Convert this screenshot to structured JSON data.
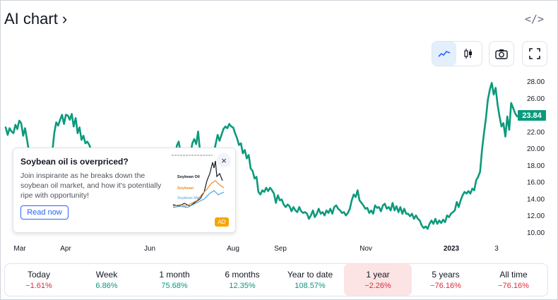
{
  "header": {
    "title": "AI chart ›",
    "embed_icon": "</>"
  },
  "toolbar": {
    "icons": [
      "line-chart-icon",
      "candlestick-icon",
      "camera-icon",
      "fullscreen-icon"
    ],
    "active_icon": "line-chart-icon"
  },
  "colors": {
    "line": "#0b9a7c",
    "accent": "#2962ff",
    "negative": "#e0293b",
    "positive": "#089981",
    "price_tag": "#0b9a7c",
    "selected_bg": "#fce4e4"
  },
  "chart_data": {
    "type": "line",
    "current_price_label": "23.84",
    "x_ticks": [
      "Mar",
      "Apr",
      "Jun",
      "Aug",
      "Sep",
      "Nov",
      "2023",
      "3"
    ],
    "y_ticks": [
      "28.00",
      "26.00",
      "24.00",
      "22.00",
      "20.00",
      "18.00",
      "16.00",
      "14.00",
      "12.00",
      "10.00"
    ],
    "ylim": [
      10,
      28
    ],
    "grid": false,
    "series": [
      {
        "values": [
          22.5,
          21.6,
          22.4,
          22.0,
          21.8,
          22.8,
          22.3,
          23.3,
          23.0,
          21.5,
          22.4,
          21.0,
          19.6,
          18.8,
          18.4,
          17.0,
          16.2,
          15.4,
          14.0,
          14.6,
          14.0,
          14.0,
          15.4,
          17.2,
          19.6,
          21.8,
          23.1,
          22.7,
          23.4,
          24.0,
          22.9,
          24.0,
          23.9,
          23.4,
          24.1,
          22.6,
          23.6,
          21.8,
          22.5,
          21.0,
          21.5,
          20.6,
          20.8,
          20.4,
          19.8,
          18.8,
          19.2,
          17.6,
          17.3,
          16.6,
          17.3,
          16.0,
          16.8,
          15.0,
          15.8,
          14.6,
          15.0,
          14.0,
          14.6,
          14.5,
          14.0,
          15.2,
          15.6,
          15.3,
          16.2,
          16.0,
          16.4,
          17.8,
          16.4,
          17.0,
          16.8,
          17.8,
          18.8,
          17.2,
          17.6,
          16.6,
          17.0,
          17.8,
          17.2,
          17.3,
          17.6,
          18.2,
          17.6,
          18.8,
          18.2,
          19.1,
          19.5,
          18.0,
          20.3,
          20.8,
          19.4,
          19.6,
          18.2,
          19.1,
          19.8,
          19.2,
          20.6,
          21.1,
          20.5,
          22.0,
          19.5,
          17.8,
          18.8,
          17.5,
          15.8,
          14.2,
          15.8,
          19.4,
          20.5,
          21.6,
          20.9,
          21.6,
          22.3,
          22.6,
          22.4,
          22.9,
          22.6,
          22.5,
          21.8,
          21.2,
          20.4,
          20.6,
          19.4,
          19.8,
          18.8,
          19.2,
          17.6,
          17.3,
          16.4,
          16.6,
          14.8,
          14.5,
          15.0,
          14.8,
          15.3,
          14.9,
          15.3,
          15.0,
          14.6,
          13.5,
          14.4,
          13.8,
          13.9,
          13.3,
          13.0,
          13.3,
          13.1,
          12.5,
          13.0,
          12.6,
          12.4,
          13.0,
          12.5,
          12.3,
          12.4,
          12.2,
          11.6,
          12.0,
          12.6,
          11.8,
          12.2,
          12.8,
          12.2,
          12.4,
          12.0,
          12.6,
          12.3,
          12.8,
          12.2,
          13.0,
          13.2,
          12.8,
          12.6,
          12.3,
          12.4,
          12.0,
          12.3,
          12.8,
          13.8,
          14.5,
          14.2,
          15.0,
          13.8,
          13.5,
          13.2,
          12.8,
          12.9,
          12.3,
          12.6,
          12.2,
          13.2,
          12.9,
          13.0,
          12.5,
          13.2,
          13.4,
          12.8,
          13.0,
          12.6,
          13.5,
          12.6,
          13.1,
          12.4,
          13.0,
          12.2,
          12.8,
          12.2,
          12.2,
          11.9,
          12.2,
          11.6,
          12.0,
          11.6,
          11.4,
          10.8,
          10.5,
          10.7,
          10.4,
          11.0,
          11.4,
          11.0,
          11.6,
          11.0,
          11.4,
          11.1,
          11.5,
          11.2,
          12.0,
          11.8,
          12.2,
          12.4,
          12.6,
          13.6,
          13.0,
          13.8,
          14.4,
          14.8,
          14.6,
          14.9,
          14.6,
          15.2,
          15.0,
          16.2,
          16.6,
          17.2,
          19.8,
          21.8,
          23.6,
          25.8,
          27.0,
          27.8,
          26.4,
          27.2,
          25.2,
          23.8,
          22.6,
          23.0,
          21.4,
          23.8,
          22.2,
          25.4,
          24.8,
          24.2,
          23.8
        ]
      }
    ]
  },
  "ad": {
    "title": "Soybean oil is overpriced?",
    "text": "Join inspirante as he breaks down the soybean oil market, and how it's potentially ripe with opportunity!",
    "button": "Read now",
    "close": "×",
    "badge": "AD",
    "thumb_labels": {
      "oil": "Soybean Oil",
      "beans": "Soybean",
      "meal": "Soybean Meal"
    }
  },
  "periods": [
    {
      "label": "Today",
      "change": "−1.61%",
      "trend": "neg"
    },
    {
      "label": "Week",
      "change": "6.86%",
      "trend": "pos"
    },
    {
      "label": "1 month",
      "change": "75.68%",
      "trend": "pos"
    },
    {
      "label": "6 months",
      "change": "12.35%",
      "trend": "pos"
    },
    {
      "label": "Year to date",
      "change": "108.57%",
      "trend": "pos"
    },
    {
      "label": "1 year",
      "change": "−2.26%",
      "trend": "neg",
      "selected": true
    },
    {
      "label": "5 years",
      "change": "−76.16%",
      "trend": "neg"
    },
    {
      "label": "All time",
      "change": "−76.16%",
      "trend": "neg"
    }
  ]
}
